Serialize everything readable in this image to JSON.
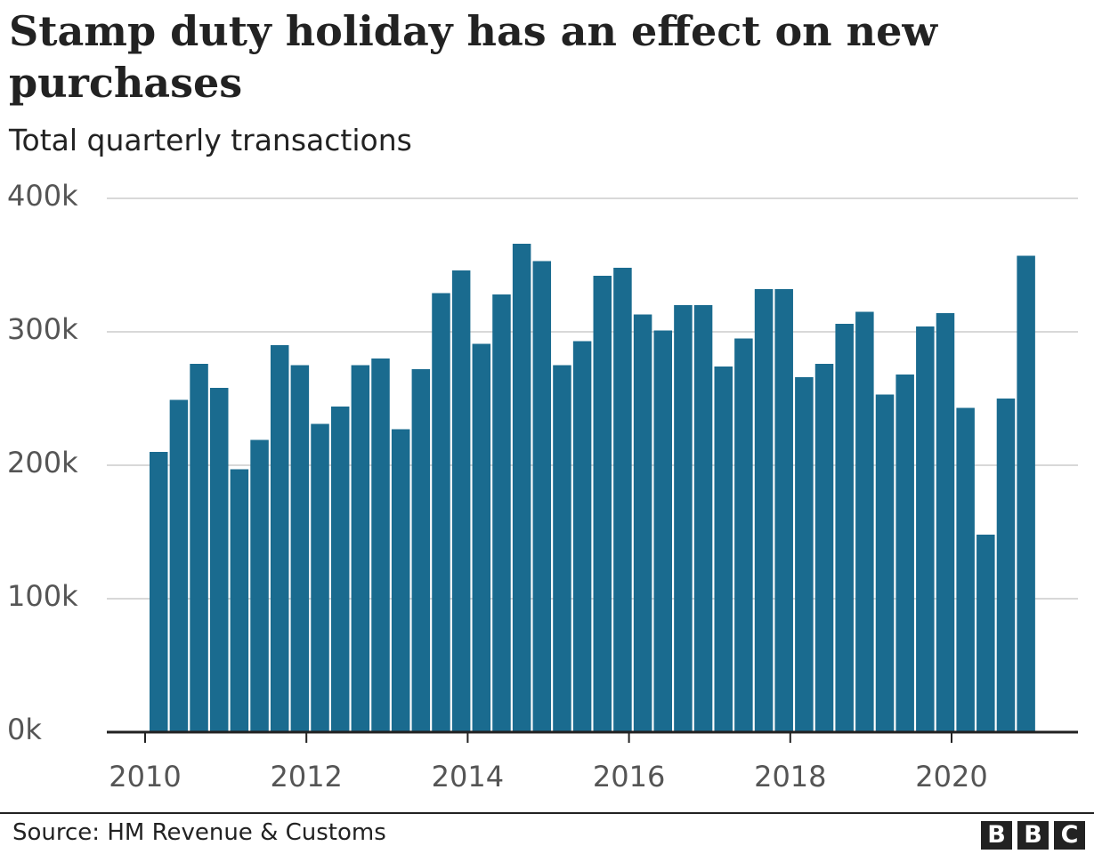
{
  "chart_data": {
    "type": "bar",
    "title": "Stamp duty holiday has an effect on new purchases",
    "subtitle": "Total quarterly transactions",
    "source": "Source: HM Revenue & Customs",
    "logo": [
      "B",
      "B",
      "C"
    ],
    "bar_color": "#1a6b8f",
    "grid": true,
    "ylim": [
      0,
      400000
    ],
    "y_ticks": [
      {
        "value": 0,
        "label": "0k"
      },
      {
        "value": 100000,
        "label": "100k"
      },
      {
        "value": 200000,
        "label": "200k"
      },
      {
        "value": 300000,
        "label": "300k"
      },
      {
        "value": 400000,
        "label": "400k"
      }
    ],
    "x_ticks": [
      "2010",
      "2012",
      "2014",
      "2016",
      "2018",
      "2020"
    ],
    "categories": [
      "2010 Q1",
      "2010 Q2",
      "2010 Q3",
      "2010 Q4",
      "2011 Q1",
      "2011 Q2",
      "2011 Q3",
      "2011 Q4",
      "2012 Q1",
      "2012 Q2",
      "2012 Q3",
      "2012 Q4",
      "2013 Q1",
      "2013 Q2",
      "2013 Q3",
      "2013 Q4",
      "2014 Q1",
      "2014 Q2",
      "2014 Q3",
      "2014 Q4",
      "2015 Q1",
      "2015 Q2",
      "2015 Q3",
      "2015 Q4",
      "2016 Q1",
      "2016 Q2",
      "2016 Q3",
      "2016 Q4",
      "2017 Q1",
      "2017 Q2",
      "2017 Q3",
      "2017 Q4",
      "2018 Q1",
      "2018 Q2",
      "2018 Q3",
      "2018 Q4",
      "2019 Q1",
      "2019 Q2",
      "2019 Q3",
      "2019 Q4",
      "2020 Q1",
      "2020 Q2",
      "2020 Q3",
      "2020 Q4"
    ],
    "values": [
      210000,
      249000,
      276000,
      258000,
      197000,
      219000,
      290000,
      275000,
      231000,
      244000,
      275000,
      280000,
      227000,
      272000,
      329000,
      346000,
      291000,
      328000,
      366000,
      353000,
      275000,
      293000,
      342000,
      348000,
      313000,
      301000,
      320000,
      320000,
      274000,
      295000,
      332000,
      332000,
      266000,
      276000,
      306000,
      315000,
      253000,
      268000,
      304000,
      314000,
      243000,
      148000,
      250000,
      357000
    ]
  }
}
